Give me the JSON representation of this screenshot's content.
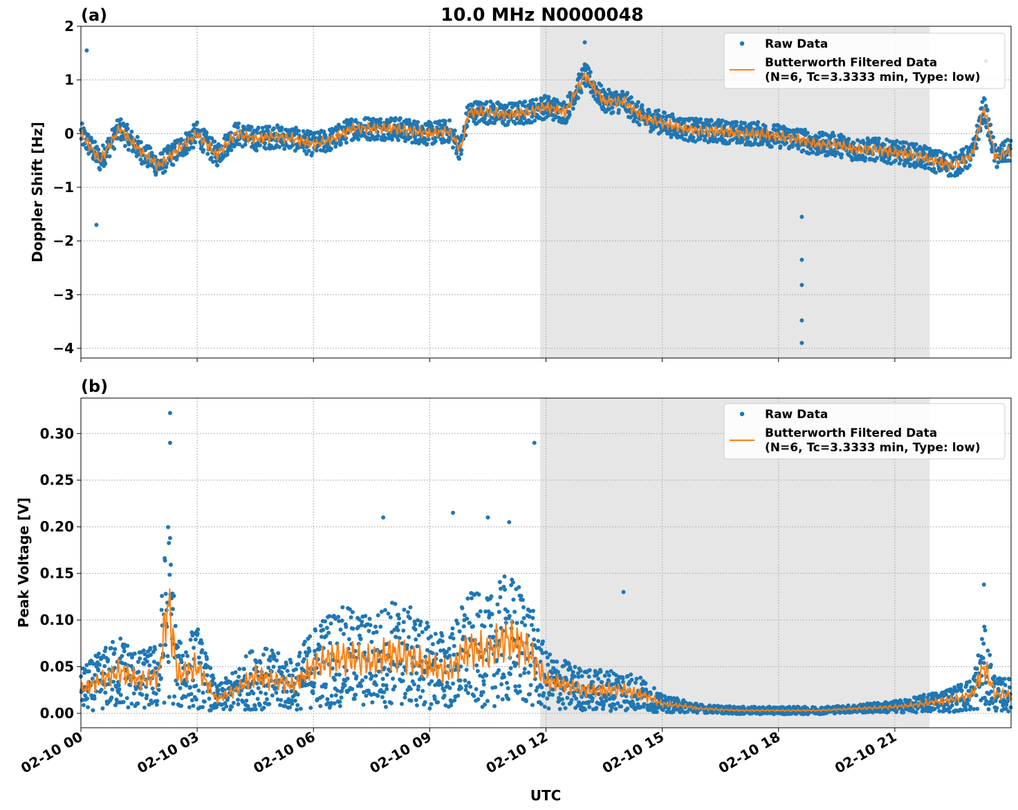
{
  "figure": {
    "title": "10.0 MHz N0000048",
    "xlabel": "UTC",
    "x_ticks": [
      "02-10 00",
      "02-10 03",
      "02-10 06",
      "02-10 09",
      "02-10 12",
      "02-10 15",
      "02-10 18",
      "02-10 21"
    ],
    "shaded_interval_hours": [
      11.85,
      21.9
    ],
    "shade_color": "#e6e6e6",
    "raw_color": "#1f77b4",
    "filtered_color": "#ff7f0e"
  },
  "legend": {
    "raw": "Raw Data",
    "filtered_line1": "Butterworth Filtered Data",
    "filtered_line2": "(N=6, Tc=3.3333 min, Type: low)"
  },
  "chart_data": [
    {
      "type": "scatter",
      "panel_label": "(a)",
      "ylabel": "Doppler Shift [Hz]",
      "y_ticks": [
        "2",
        "1",
        "0",
        "−1",
        "−2",
        "−3",
        "−4"
      ],
      "xlim_hours": [
        0,
        24
      ],
      "ylim": [
        -4.18,
        2.0
      ],
      "grid": true,
      "legend_position": "top-right",
      "series": [
        {
          "name": "Raw Data",
          "x_hours": [
            0,
            0.5,
            1,
            1.5,
            2,
            2.5,
            3,
            3.5,
            4,
            4.5,
            5,
            5.5,
            6,
            6.5,
            7,
            7.5,
            8,
            8.5,
            9,
            9.5,
            9.8,
            10,
            10.5,
            11,
            11.5,
            12,
            12.5,
            13,
            13.5,
            14,
            14.5,
            15,
            15.5,
            16,
            16.5,
            17,
            17.5,
            18,
            18.5,
            19,
            19.5,
            20,
            20.5,
            21,
            21.5,
            22,
            22.5,
            23,
            23.3,
            23.6,
            24
          ],
          "y": [
            0.0,
            -0.5,
            0.1,
            -0.3,
            -0.6,
            -0.3,
            0.0,
            -0.4,
            0.0,
            -0.1,
            -0.05,
            -0.1,
            -0.2,
            -0.1,
            0.1,
            0.1,
            0.1,
            0.05,
            0.0,
            0.05,
            -0.3,
            0.4,
            0.4,
            0.35,
            0.4,
            0.5,
            0.4,
            1.1,
            0.6,
            0.6,
            0.3,
            0.2,
            0.1,
            0.05,
            0.05,
            0.0,
            0.0,
            -0.05,
            -0.1,
            -0.2,
            -0.2,
            -0.3,
            -0.3,
            -0.35,
            -0.4,
            -0.5,
            -0.6,
            -0.4,
            0.5,
            -0.45,
            -0.3
          ],
          "outliers": [
            {
              "x_hours": 0.15,
              "y": 1.55
            },
            {
              "x_hours": 0.4,
              "y": -1.7
            },
            {
              "x_hours": 13.0,
              "y": 1.7
            },
            {
              "x_hours": 18.6,
              "y": -1.55
            },
            {
              "x_hours": 18.6,
              "y": -2.35
            },
            {
              "x_hours": 18.6,
              "y": -2.82
            },
            {
              "x_hours": 18.6,
              "y": -3.48
            },
            {
              "x_hours": 18.6,
              "y": -3.9
            },
            {
              "x_hours": 23.35,
              "y": 1.35
            }
          ]
        },
        {
          "name": "Butterworth Filtered Data (N=6, Tc=3.3333 min, Type: low)",
          "x_hours": [
            0,
            0.5,
            1,
            1.5,
            2,
            2.5,
            3,
            3.5,
            4,
            4.5,
            5,
            5.5,
            6,
            6.5,
            7,
            7.5,
            8,
            8.5,
            9,
            9.5,
            9.8,
            10,
            10.5,
            11,
            11.5,
            12,
            12.5,
            13,
            13.5,
            14,
            14.5,
            15,
            15.5,
            16,
            16.5,
            17,
            17.5,
            18,
            18.5,
            19,
            19.5,
            20,
            20.5,
            21,
            21.5,
            22,
            22.5,
            23,
            23.3,
            23.6,
            24
          ],
          "y": [
            0.0,
            -0.5,
            0.1,
            -0.3,
            -0.6,
            -0.3,
            0.0,
            -0.4,
            0.0,
            -0.1,
            -0.05,
            -0.1,
            -0.2,
            -0.1,
            0.1,
            0.1,
            0.1,
            0.05,
            0.0,
            0.05,
            -0.3,
            0.4,
            0.4,
            0.35,
            0.4,
            0.5,
            0.4,
            1.1,
            0.6,
            0.6,
            0.3,
            0.2,
            0.1,
            0.05,
            0.05,
            0.0,
            0.0,
            -0.05,
            -0.1,
            -0.2,
            -0.2,
            -0.3,
            -0.3,
            -0.35,
            -0.4,
            -0.5,
            -0.6,
            -0.4,
            0.5,
            -0.45,
            -0.3
          ]
        }
      ]
    },
    {
      "type": "scatter",
      "panel_label": "(b)",
      "ylabel": "Peak Voltage [V]",
      "y_ticks": [
        "0.30",
        "0.25",
        "0.20",
        "0.15",
        "0.10",
        "0.05",
        "0.00"
      ],
      "xlim_hours": [
        0,
        24
      ],
      "ylim": [
        -0.0155,
        0.338
      ],
      "grid": true,
      "legend_position": "top-right",
      "series": [
        {
          "name": "Raw Data",
          "x_hours": [
            0,
            0.5,
            1,
            1.5,
            2,
            2.25,
            2.5,
            3,
            3.5,
            4,
            4.5,
            5,
            5.5,
            6,
            6.5,
            7,
            7.5,
            8,
            8.5,
            9,
            9.5,
            10,
            10.5,
            11,
            11.5,
            12,
            12.5,
            13,
            13.5,
            14,
            14.5,
            15,
            15.5,
            16,
            16.5,
            17,
            17.5,
            18,
            18.5,
            19,
            19.5,
            20,
            20.5,
            21,
            21.5,
            22,
            22.5,
            23,
            23.3,
            23.6,
            24
          ],
          "y": [
            0.025,
            0.035,
            0.045,
            0.035,
            0.04,
            0.12,
            0.04,
            0.05,
            0.015,
            0.025,
            0.04,
            0.035,
            0.03,
            0.05,
            0.06,
            0.06,
            0.055,
            0.065,
            0.06,
            0.05,
            0.045,
            0.07,
            0.065,
            0.08,
            0.07,
            0.035,
            0.03,
            0.025,
            0.025,
            0.025,
            0.02,
            0.01,
            0.008,
            0.005,
            0.004,
            0.003,
            0.003,
            0.003,
            0.003,
            0.003,
            0.004,
            0.005,
            0.006,
            0.007,
            0.009,
            0.012,
            0.015,
            0.02,
            0.05,
            0.02,
            0.02
          ],
          "outliers": [
            {
              "x_hours": 2.3,
              "y": 0.322
            },
            {
              "x_hours": 2.3,
              "y": 0.29
            },
            {
              "x_hours": 11.7,
              "y": 0.29
            },
            {
              "x_hours": 7.8,
              "y": 0.21
            },
            {
              "x_hours": 9.6,
              "y": 0.215
            },
            {
              "x_hours": 10.5,
              "y": 0.21
            },
            {
              "x_hours": 11.05,
              "y": 0.205
            },
            {
              "x_hours": 23.3,
              "y": 0.138
            },
            {
              "x_hours": 14.0,
              "y": 0.13
            }
          ]
        },
        {
          "name": "Butterworth Filtered Data (N=6, Tc=3.3333 min, Type: low)",
          "x_hours": [
            0,
            0.5,
            1,
            1.5,
            2,
            2.25,
            2.5,
            3,
            3.5,
            4,
            4.5,
            5,
            5.5,
            6,
            6.5,
            7,
            7.5,
            8,
            8.5,
            9,
            9.5,
            10,
            10.5,
            11,
            11.5,
            12,
            12.5,
            13,
            13.5,
            14,
            14.5,
            15,
            15.5,
            16,
            16.5,
            17,
            17.5,
            18,
            18.5,
            19,
            19.5,
            20,
            20.5,
            21,
            21.5,
            22,
            22.5,
            23,
            23.3,
            23.6,
            24
          ],
          "y": [
            0.025,
            0.035,
            0.045,
            0.035,
            0.04,
            0.12,
            0.04,
            0.05,
            0.015,
            0.025,
            0.04,
            0.035,
            0.03,
            0.05,
            0.06,
            0.06,
            0.055,
            0.065,
            0.06,
            0.05,
            0.045,
            0.07,
            0.065,
            0.08,
            0.07,
            0.035,
            0.03,
            0.025,
            0.025,
            0.025,
            0.02,
            0.01,
            0.008,
            0.005,
            0.004,
            0.003,
            0.003,
            0.003,
            0.003,
            0.003,
            0.004,
            0.005,
            0.006,
            0.007,
            0.009,
            0.012,
            0.015,
            0.02,
            0.05,
            0.02,
            0.02
          ]
        }
      ]
    }
  ]
}
